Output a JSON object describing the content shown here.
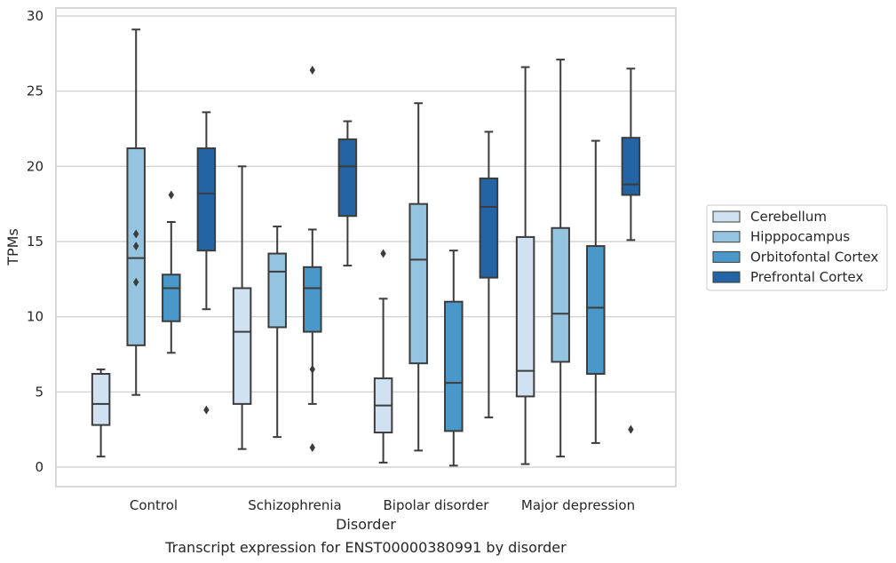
{
  "caption": "Transcript expression for ENST00000380991 by disorder",
  "chart_data": {
    "type": "box",
    "title": "",
    "xlabel": "Disorder",
    "ylabel": "TPMs",
    "ylim": [
      -1.3,
      30.6
    ],
    "yticks": [
      0,
      5,
      10,
      15,
      20,
      25,
      30
    ],
    "grid": "horizontal",
    "legend_position": "right",
    "categories": [
      "Control",
      "Schizophrenia",
      "Bipolar disorder",
      "Major depression"
    ],
    "series": [
      {
        "name": "Cerebellum",
        "color": "#d0e1f2",
        "boxes": [
          {
            "whislo": 0.7,
            "q1": 2.8,
            "med": 4.2,
            "q3": 6.2,
            "whishi": 6.5,
            "fliers": []
          },
          {
            "whislo": 1.2,
            "q1": 4.2,
            "med": 9.0,
            "q3": 11.9,
            "whishi": 20.0,
            "fliers": []
          },
          {
            "whislo": 0.3,
            "q1": 2.3,
            "med": 4.1,
            "q3": 5.9,
            "whishi": 11.2,
            "fliers": [
              14.2
            ]
          },
          {
            "whislo": 0.2,
            "q1": 4.7,
            "med": 6.4,
            "q3": 15.3,
            "whishi": 26.6,
            "fliers": []
          }
        ]
      },
      {
        "name": "Hipppocampus",
        "color": "#94c4df",
        "boxes": [
          {
            "whislo": 4.8,
            "q1": 8.1,
            "med": 13.9,
            "q3": 21.2,
            "whishi": 29.1,
            "fliers": [
              15.5,
              14.7,
              12.3
            ]
          },
          {
            "whislo": 2.0,
            "q1": 9.3,
            "med": 13.0,
            "q3": 14.2,
            "whishi": 16.0,
            "fliers": []
          },
          {
            "whislo": 1.1,
            "q1": 6.9,
            "med": 13.8,
            "q3": 17.5,
            "whishi": 24.2,
            "fliers": []
          },
          {
            "whislo": 0.7,
            "q1": 7.0,
            "med": 10.2,
            "q3": 15.9,
            "whishi": 27.1,
            "fliers": []
          }
        ]
      },
      {
        "name": "Orbitofontal Cortex",
        "color": "#4a98c9",
        "boxes": [
          {
            "whislo": 7.6,
            "q1": 9.7,
            "med": 11.9,
            "q3": 12.8,
            "whishi": 16.3,
            "fliers": [
              18.1
            ]
          },
          {
            "whislo": 4.2,
            "q1": 9.0,
            "med": 11.9,
            "q3": 13.3,
            "whishi": 15.8,
            "fliers": [
              26.4,
              6.5,
              1.3
            ]
          },
          {
            "whislo": 0.1,
            "q1": 2.4,
            "med": 5.6,
            "q3": 11.0,
            "whishi": 14.4,
            "fliers": []
          },
          {
            "whislo": 1.6,
            "q1": 6.2,
            "med": 10.6,
            "q3": 14.7,
            "whishi": 21.7,
            "fliers": []
          }
        ]
      },
      {
        "name": "Prefrontal Cortex",
        "color": "#2463a4",
        "boxes": [
          {
            "whislo": 10.5,
            "q1": 14.4,
            "med": 18.2,
            "q3": 21.2,
            "whishi": 23.6,
            "fliers": [
              3.8
            ]
          },
          {
            "whislo": 13.4,
            "q1": 16.7,
            "med": 20.0,
            "q3": 21.8,
            "whishi": 23.0,
            "fliers": []
          },
          {
            "whislo": 3.3,
            "q1": 12.6,
            "med": 17.3,
            "q3": 19.2,
            "whishi": 22.3,
            "fliers": []
          },
          {
            "whislo": 15.1,
            "q1": 18.1,
            "med": 18.8,
            "q3": 21.9,
            "whishi": 26.5,
            "fliers": [
              2.5
            ]
          }
        ]
      }
    ]
  }
}
